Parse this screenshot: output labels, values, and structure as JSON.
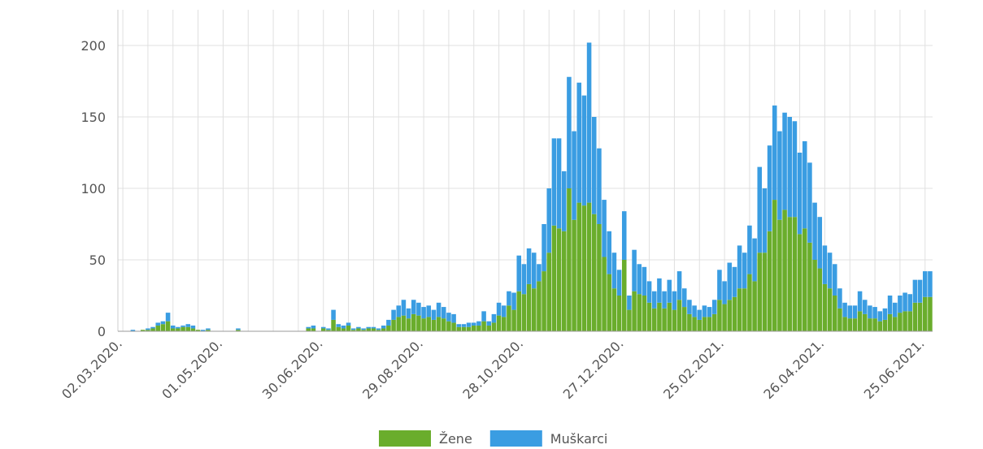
{
  "chart_data": {
    "type": "stacked_bar",
    "categories": [
      "02.03.2020.",
      null,
      null,
      null,
      null,
      null,
      null,
      null,
      null,
      null,
      null,
      null,
      null,
      null,
      null,
      null,
      null,
      null,
      null,
      null,
      "01.05.2020.",
      null,
      null,
      null,
      null,
      null,
      null,
      null,
      null,
      null,
      null,
      null,
      null,
      null,
      null,
      null,
      null,
      null,
      null,
      null,
      "30.06.2020.",
      null,
      null,
      null,
      null,
      null,
      null,
      null,
      null,
      null,
      null,
      null,
      null,
      null,
      null,
      null,
      null,
      null,
      null,
      null,
      "29.08.2020.",
      null,
      null,
      null,
      null,
      null,
      null,
      null,
      null,
      null,
      null,
      null,
      null,
      null,
      null,
      null,
      null,
      null,
      null,
      null,
      "28.10.2020.",
      null,
      null,
      null,
      null,
      null,
      null,
      null,
      null,
      null,
      null,
      null,
      null,
      null,
      null,
      null,
      null,
      null,
      null,
      null,
      "27.12.2020.",
      null,
      null,
      null,
      null,
      null,
      null,
      null,
      null,
      null,
      null,
      null,
      null,
      null,
      null,
      null,
      null,
      null,
      null,
      null,
      "25.02.2021.",
      null,
      null,
      null,
      null,
      null,
      null,
      null,
      null,
      null,
      null,
      null,
      null,
      null,
      null,
      null,
      null,
      null,
      null,
      null,
      "26.04.2021.",
      null,
      null,
      null,
      null,
      null,
      null,
      null,
      null,
      null,
      null,
      null,
      null,
      null,
      null,
      null,
      null,
      null,
      null,
      null,
      "25.06.2021.",
      null
    ],
    "series": [
      {
        "name": "Žene",
        "color": "#6aad2c",
        "values": [
          0,
          0,
          0,
          0,
          1,
          1,
          2,
          4,
          5,
          7,
          2,
          2,
          3,
          3,
          2,
          1,
          0,
          1,
          0,
          0,
          0,
          0,
          0,
          1,
          0,
          0,
          0,
          0,
          0,
          0,
          0,
          0,
          0,
          0,
          0,
          0,
          0,
          2,
          2,
          0,
          2,
          1,
          8,
          3,
          2,
          4,
          1,
          2,
          1,
          2,
          2,
          1,
          2,
          4,
          8,
          10,
          11,
          9,
          12,
          11,
          9,
          10,
          8,
          10,
          9,
          7,
          6,
          3,
          3,
          3,
          4,
          4,
          7,
          4,
          6,
          11,
          10,
          18,
          15,
          28,
          26,
          33,
          30,
          35,
          42,
          55,
          74,
          72,
          70,
          100,
          78,
          90,
          88,
          90,
          82,
          75,
          52,
          40,
          30,
          25,
          50,
          15,
          28,
          26,
          25,
          20,
          16,
          20,
          16,
          20,
          15,
          22,
          17,
          12,
          10,
          8,
          10,
          10,
          12,
          22,
          19,
          22,
          24,
          30,
          30,
          40,
          35,
          55,
          55,
          70,
          92,
          78,
          85,
          80,
          80,
          68,
          72,
          62,
          50,
          44,
          33,
          30,
          25,
          16,
          10,
          9,
          9,
          14,
          12,
          9,
          9,
          7,
          8,
          12,
          10,
          13,
          14,
          14,
          20,
          20,
          24,
          24
        ]
      },
      {
        "name": "Muškarci",
        "color": "#3a9de2",
        "values": [
          0,
          0,
          1,
          0,
          0,
          1,
          1,
          2,
          2,
          6,
          2,
          1,
          1,
          2,
          2,
          0,
          1,
          1,
          0,
          0,
          0,
          0,
          0,
          1,
          0,
          0,
          0,
          0,
          0,
          0,
          0,
          0,
          0,
          0,
          0,
          0,
          0,
          1,
          2,
          0,
          1,
          1,
          7,
          2,
          2,
          2,
          1,
          1,
          1,
          1,
          1,
          1,
          2,
          4,
          7,
          8,
          11,
          7,
          10,
          9,
          8,
          8,
          7,
          10,
          8,
          6,
          6,
          2,
          2,
          3,
          2,
          3,
          7,
          3,
          6,
          9,
          8,
          10,
          12,
          25,
          21,
          25,
          25,
          12,
          33,
          45,
          61,
          63,
          42,
          78,
          62,
          84,
          77,
          112,
          68,
          53,
          40,
          30,
          25,
          18,
          34,
          10,
          29,
          21,
          20,
          15,
          12,
          17,
          12,
          16,
          13,
          20,
          13,
          10,
          8,
          7,
          8,
          7,
          10,
          21,
          16,
          26,
          21,
          30,
          25,
          34,
          30,
          60,
          45,
          60,
          66,
          62,
          68,
          70,
          67,
          57,
          61,
          56,
          40,
          36,
          27,
          25,
          22,
          14,
          10,
          9,
          9,
          14,
          10,
          9,
          8,
          7,
          8,
          13,
          10,
          12,
          13,
          12,
          16,
          16,
          18,
          18
        ]
      }
    ],
    "ylim": [
      0,
      225
    ],
    "yticks": [
      0,
      50,
      100,
      150,
      200
    ],
    "grid": true,
    "legend": "bottom"
  }
}
